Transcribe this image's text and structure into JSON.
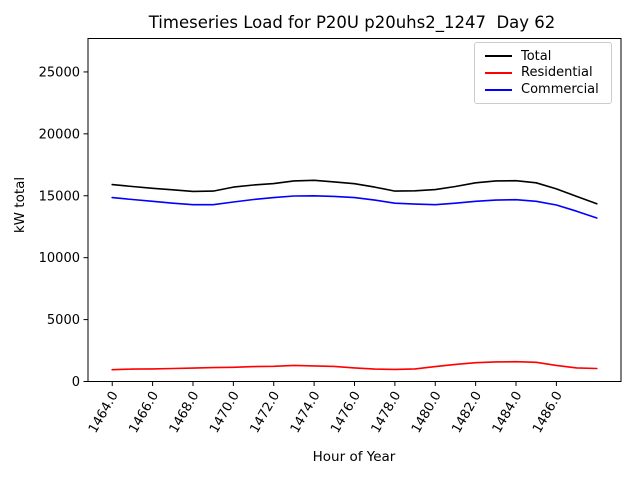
{
  "chart_data": {
    "type": "line",
    "title": "Timeseries Load for P20U p20uhs2_1247  Day 62",
    "xlabel": "Hour of Year",
    "ylabel": "kW total",
    "grid": false,
    "legend_position": "upper right",
    "xlim": [
      1462.8,
      1489.2
    ],
    "ylim": [
      0,
      27700
    ],
    "x": [
      1464,
      1465,
      1466,
      1467,
      1468,
      1469,
      1470,
      1471,
      1472,
      1473,
      1474,
      1475,
      1476,
      1477,
      1478,
      1479,
      1480,
      1481,
      1482,
      1483,
      1484,
      1485,
      1486,
      1487,
      1488
    ],
    "xticks": [
      1464,
      1466,
      1468,
      1470,
      1472,
      1474,
      1476,
      1478,
      1480,
      1482,
      1484,
      1486
    ],
    "xtick_labels": [
      "1464.0",
      "1466.0",
      "1468.0",
      "1470.0",
      "1472.0",
      "1474.0",
      "1476.0",
      "1478.0",
      "1480.0",
      "1482.0",
      "1484.0",
      "1486.0"
    ],
    "yticks": [
      0,
      5000,
      10000,
      15000,
      20000,
      25000
    ],
    "ytick_labels": [
      "0",
      "5000",
      "10000",
      "15000",
      "20000",
      "25000"
    ],
    "series": [
      {
        "name": "Total",
        "color": "#000000",
        "values": [
          15900,
          15750,
          15600,
          15480,
          15350,
          15380,
          15700,
          15870,
          15980,
          16200,
          16250,
          16120,
          15970,
          15700,
          15380,
          15400,
          15500,
          15750,
          16050,
          16200,
          16220,
          16050,
          15550,
          14950,
          14350
        ]
      },
      {
        "name": "Residential",
        "color": "#ff0000",
        "values": [
          950,
          1000,
          1020,
          1050,
          1080,
          1120,
          1150,
          1200,
          1230,
          1300,
          1260,
          1220,
          1100,
          1000,
          980,
          1020,
          1200,
          1380,
          1520,
          1580,
          1600,
          1550,
          1300,
          1100,
          1050
        ]
      },
      {
        "name": "Commercial",
        "color": "#0000ff",
        "values": [
          14850,
          14700,
          14550,
          14400,
          14280,
          14280,
          14500,
          14700,
          14850,
          14980,
          15000,
          14950,
          14850,
          14650,
          14400,
          14330,
          14280,
          14400,
          14550,
          14650,
          14680,
          14550,
          14250,
          13750,
          13200
        ]
      }
    ]
  }
}
